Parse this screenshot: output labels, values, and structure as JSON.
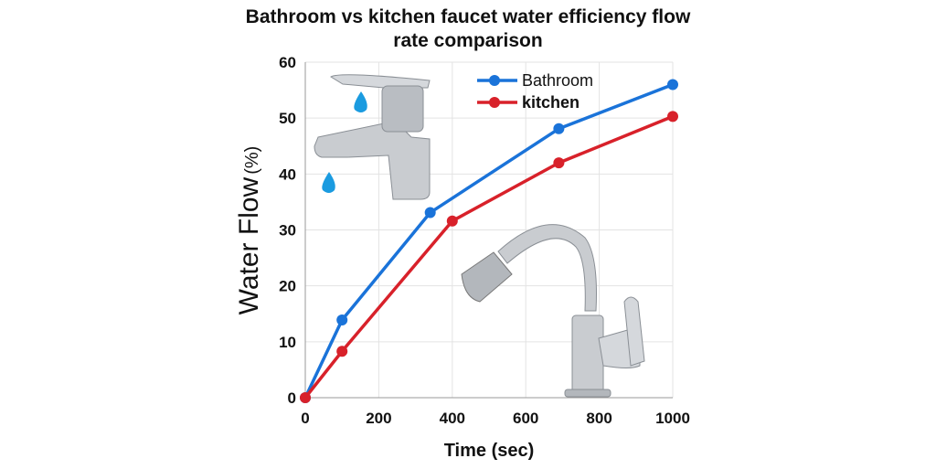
{
  "chart_data": {
    "type": "line",
    "title": "Bathroom vs kitchen faucet water efficiency flow rate comparison",
    "xlabel": "Time (sec)",
    "ylabel": "Water Flow",
    "ylabel_unit": "(%)",
    "xlim": [
      0,
      1000
    ],
    "ylim": [
      0,
      60
    ],
    "xticks": [
      0,
      200,
      400,
      600,
      800,
      1000
    ],
    "yticks": [
      0,
      10,
      20,
      30,
      40,
      50,
      60
    ],
    "grid": true,
    "legend_position": "top-right",
    "series": [
      {
        "name": "Bathroom",
        "color": "#1a73d9",
        "x": [
          0,
          100,
          340,
          690,
          1000
        ],
        "y": [
          0,
          13.9,
          33.1,
          48.1,
          56.0
        ]
      },
      {
        "name": "kitchen",
        "color": "#d8212a",
        "x": [
          0,
          100,
          400,
          690,
          1000
        ],
        "y": [
          0,
          8.3,
          31.6,
          42.0,
          50.3
        ]
      }
    ],
    "illustrations": [
      "bathroom-faucet-image",
      "kitchen-faucet-image"
    ]
  }
}
